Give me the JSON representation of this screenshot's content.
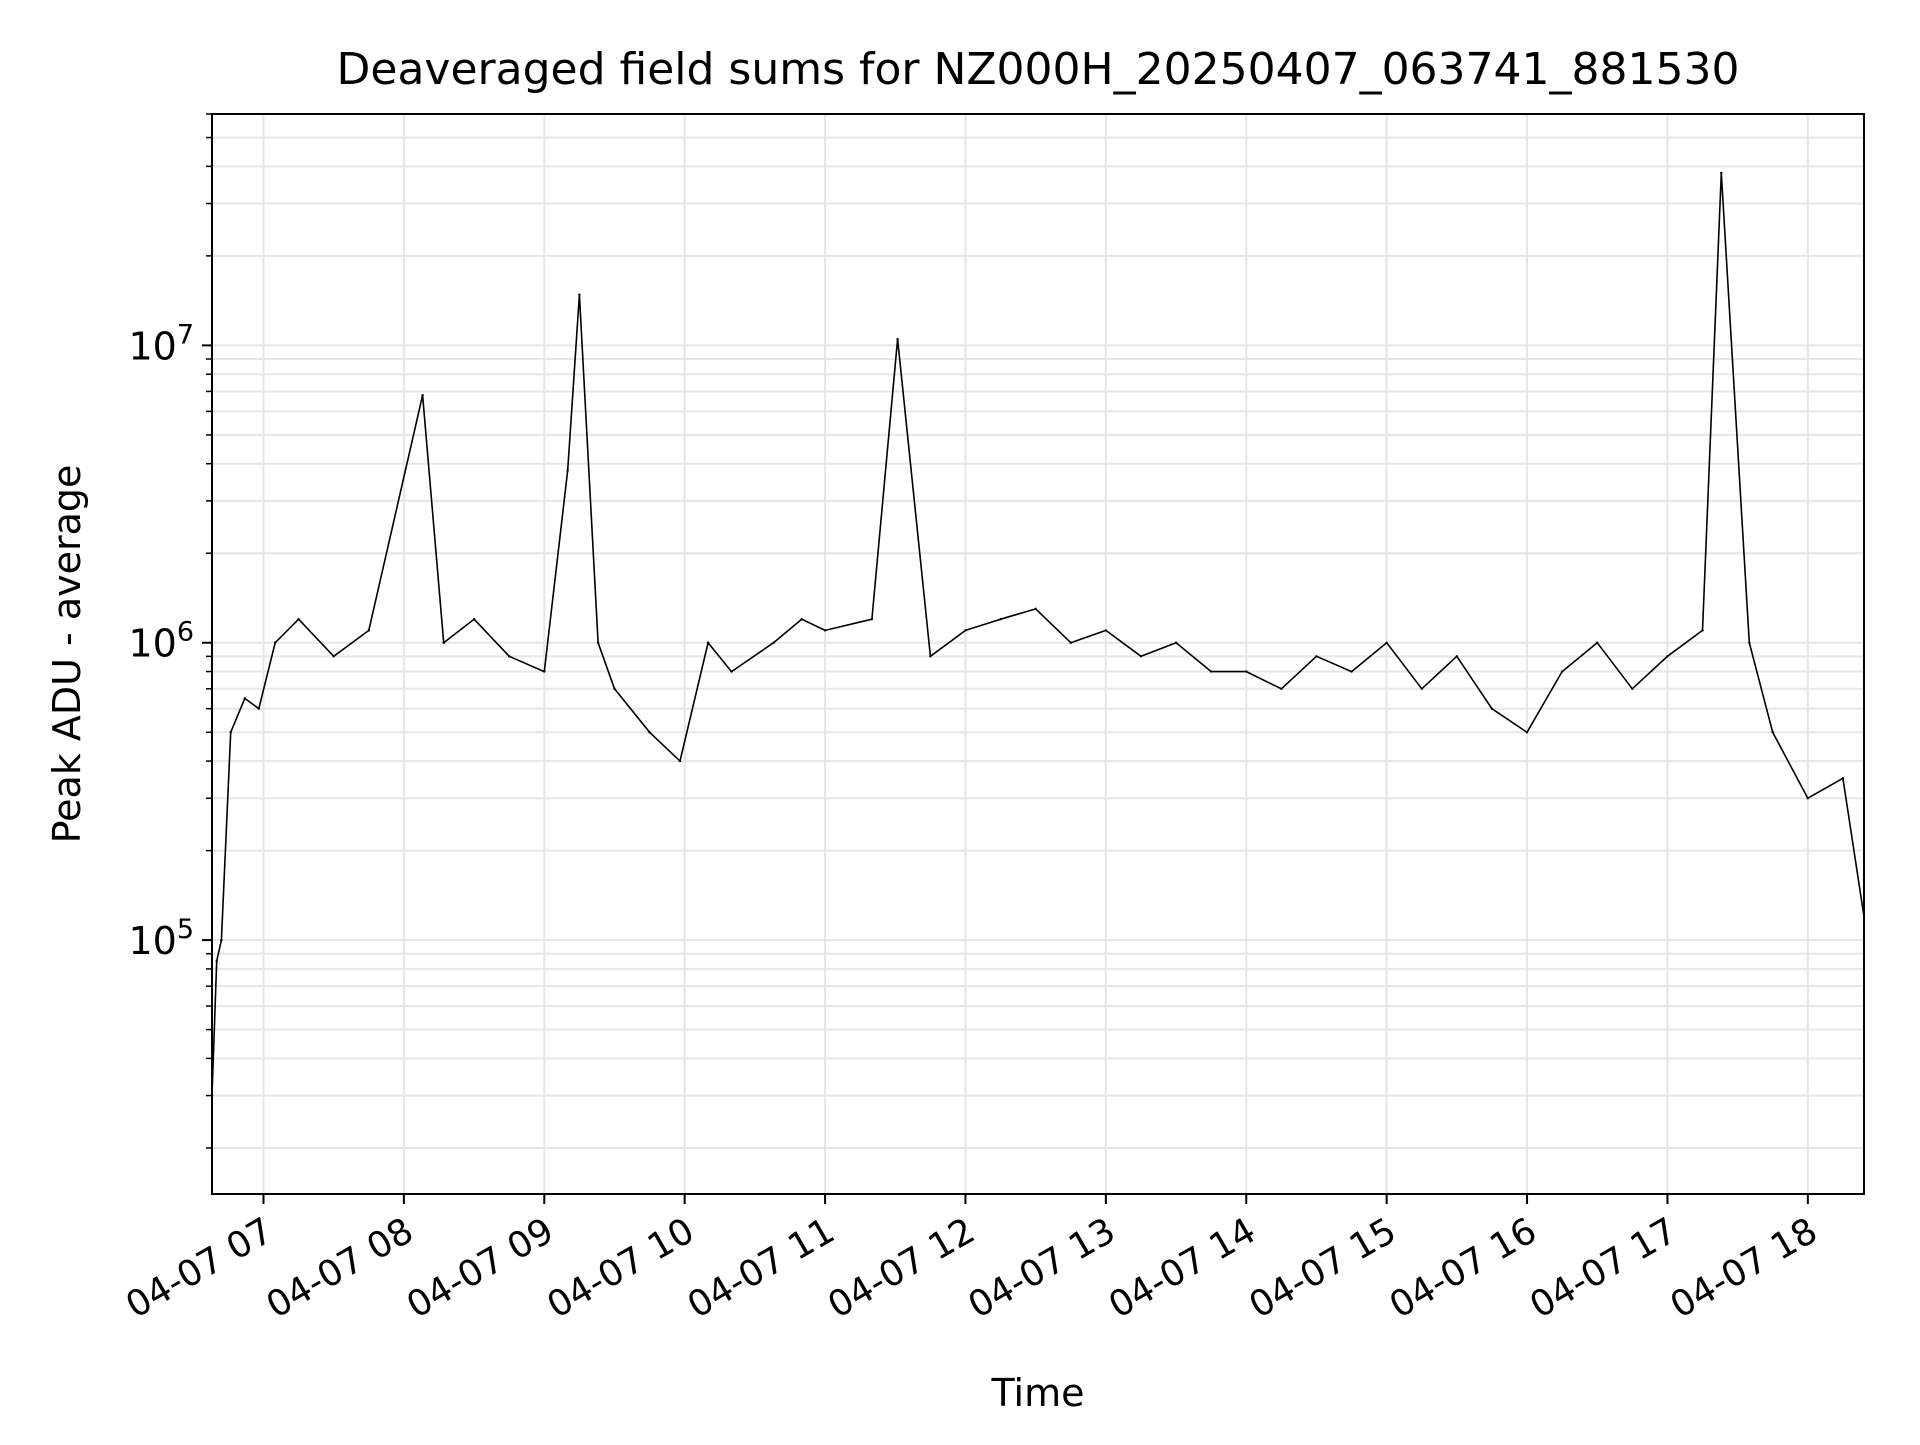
{
  "chart_data": {
    "type": "line",
    "title": "Deaveraged field sums for NZ000H_20250407_063741_881530",
    "xlabel": "Time",
    "ylabel": "Peak ADU - average",
    "y_scale": "log",
    "y_tick_labels": [
      {
        "base": "10",
        "exp": "5",
        "value": 100000
      },
      {
        "base": "10",
        "exp": "6",
        "value": 1000000
      },
      {
        "base": "10",
        "exp": "7",
        "value": 10000000
      }
    ],
    "ylim": [
      14000,
      60000000
    ],
    "xlim": [
      "2025-04-07 06:38",
      "2025-04-07 18:24"
    ],
    "x_tick_labels": [
      "04-07 07",
      "04-07 08",
      "04-07 09",
      "04-07 10",
      "04-07 11",
      "04-07 12",
      "04-07 13",
      "04-07 14",
      "04-07 15",
      "04-07 16",
      "04-07 17",
      "04-07 18"
    ],
    "x_tick_values": [
      "2025-04-07 07:00",
      "2025-04-07 08:00",
      "2025-04-07 09:00",
      "2025-04-07 10:00",
      "2025-04-07 11:00",
      "2025-04-07 12:00",
      "2025-04-07 13:00",
      "2025-04-07 14:00",
      "2025-04-07 15:00",
      "2025-04-07 16:00",
      "2025-04-07 17:00",
      "2025-04-07 18:00"
    ],
    "grid": true,
    "line_color": "#000000",
    "grid_color": "#e6e6e6",
    "series": [
      {
        "name": "",
        "x": [
          "2025-04-07 06:38",
          "2025-04-07 06:40",
          "2025-04-07 06:42",
          "2025-04-07 06:46",
          "2025-04-07 06:52",
          "2025-04-07 06:58",
          "2025-04-07 07:05",
          "2025-04-07 07:15",
          "2025-04-07 07:30",
          "2025-04-07 07:45",
          "2025-04-07 08:08",
          "2025-04-07 08:17",
          "2025-04-07 08:30",
          "2025-04-07 08:45",
          "2025-04-07 09:00",
          "2025-04-07 09:10",
          "2025-04-07 09:15",
          "2025-04-07 09:23",
          "2025-04-07 09:30",
          "2025-04-07 09:45",
          "2025-04-07 09:58",
          "2025-04-07 10:10",
          "2025-04-07 10:20",
          "2025-04-07 10:38",
          "2025-04-07 10:50",
          "2025-04-07 11:00",
          "2025-04-07 11:20",
          "2025-04-07 11:31",
          "2025-04-07 11:45",
          "2025-04-07 12:00",
          "2025-04-07 12:15",
          "2025-04-07 12:30",
          "2025-04-07 12:45",
          "2025-04-07 13:00",
          "2025-04-07 13:15",
          "2025-04-07 13:30",
          "2025-04-07 13:45",
          "2025-04-07 14:00",
          "2025-04-07 14:15",
          "2025-04-07 14:30",
          "2025-04-07 14:45",
          "2025-04-07 15:00",
          "2025-04-07 15:15",
          "2025-04-07 15:30",
          "2025-04-07 15:45",
          "2025-04-07 16:00",
          "2025-04-07 16:15",
          "2025-04-07 16:30",
          "2025-04-07 16:45",
          "2025-04-07 17:00",
          "2025-04-07 17:15",
          "2025-04-07 17:23",
          "2025-04-07 17:35",
          "2025-04-07 17:45",
          "2025-04-07 18:00",
          "2025-04-07 18:15",
          "2025-04-07 18:24"
        ],
        "values": [
          30000,
          85000,
          100000,
          500000,
          650000,
          600000,
          1000000,
          1200000,
          900000,
          1100000,
          6800000,
          1000000,
          1200000,
          900000,
          800000,
          3800000,
          14800000,
          1000000,
          700000,
          500000,
          400000,
          1000000,
          800000,
          1000000,
          1200000,
          1100000,
          1200000,
          10500000,
          900000,
          1100000,
          1200000,
          1300000,
          1000000,
          1100000,
          900000,
          1000000,
          800000,
          800000,
          700000,
          900000,
          800000,
          1000000,
          700000,
          900000,
          600000,
          500000,
          800000,
          1000000,
          700000,
          900000,
          1100000,
          38000000,
          1000000,
          500000,
          300000,
          350000,
          120000
        ]
      }
    ]
  }
}
